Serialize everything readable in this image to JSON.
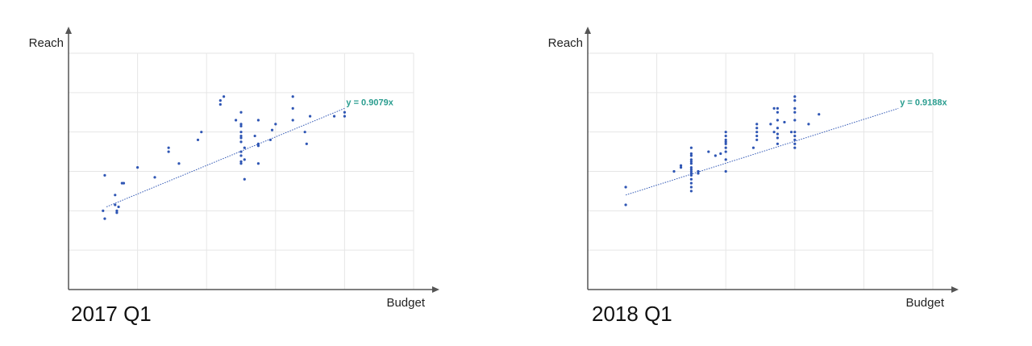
{
  "colors": {
    "point": "#2f56b4",
    "trend": "#2f56b4",
    "equation": "#2a9d8f",
    "grid": "#e6e6e6",
    "axis": "#555555"
  },
  "chart_data": [
    {
      "type": "scatter",
      "title": "2017 Q1",
      "xlabel": "Budget",
      "ylabel": "Reach",
      "xlim": [
        0,
        10
      ],
      "ylim": [
        0,
        6
      ],
      "grid": true,
      "trendline": {
        "label": "y = 0.9079x",
        "x": [
          1.1,
          8.0
        ],
        "y": [
          2.1,
          4.6
        ]
      },
      "points": [
        [
          1.0,
          2.0
        ],
        [
          1.05,
          1.8
        ],
        [
          1.05,
          2.9
        ],
        [
          1.4,
          2.0
        ],
        [
          1.35,
          2.15
        ],
        [
          1.4,
          1.95
        ],
        [
          1.45,
          2.1
        ],
        [
          1.35,
          2.4
        ],
        [
          1.55,
          2.7
        ],
        [
          1.6,
          2.7
        ],
        [
          2.0,
          3.1
        ],
        [
          2.5,
          2.85
        ],
        [
          2.9,
          3.5
        ],
        [
          2.9,
          3.6
        ],
        [
          3.2,
          3.2
        ],
        [
          3.75,
          3.8
        ],
        [
          3.85,
          4.0
        ],
        [
          4.4,
          4.7
        ],
        [
          4.4,
          4.8
        ],
        [
          4.5,
          4.9
        ],
        [
          4.85,
          4.3
        ],
        [
          5.0,
          4.5
        ],
        [
          5.0,
          4.2
        ],
        [
          5.0,
          4.15
        ],
        [
          5.0,
          4.0
        ],
        [
          5.0,
          3.9
        ],
        [
          5.0,
          3.85
        ],
        [
          5.0,
          3.75
        ],
        [
          5.0,
          3.5
        ],
        [
          5.0,
          3.4
        ],
        [
          5.0,
          3.25
        ],
        [
          5.0,
          3.2
        ],
        [
          5.1,
          3.6
        ],
        [
          5.1,
          3.3
        ],
        [
          5.1,
          2.8
        ],
        [
          5.5,
          4.3
        ],
        [
          5.4,
          3.9
        ],
        [
          5.5,
          3.7
        ],
        [
          5.5,
          3.65
        ],
        [
          5.5,
          3.2
        ],
        [
          6.0,
          4.2
        ],
        [
          6.5,
          4.3
        ],
        [
          6.5,
          4.6
        ],
        [
          6.5,
          4.9
        ],
        [
          7.0,
          4.4
        ],
        [
          6.85,
          4.0
        ],
        [
          6.9,
          3.7
        ],
        [
          7.7,
          4.4
        ],
        [
          8.0,
          4.5
        ],
        [
          8.0,
          4.4
        ],
        [
          5.9,
          4.05
        ],
        [
          5.85,
          3.8
        ]
      ]
    },
    {
      "type": "scatter",
      "title": "2018 Q1",
      "xlabel": "Budget",
      "ylabel": "Reach",
      "xlim": [
        0,
        10
      ],
      "ylim": [
        0,
        6
      ],
      "grid": true,
      "trendline": {
        "label": "y = 0.9188x",
        "x": [
          1.1,
          9.0
        ],
        "y": [
          2.4,
          4.6
        ]
      },
      "points": [
        [
          1.1,
          2.6
        ],
        [
          1.1,
          2.15
        ],
        [
          2.7,
          3.15
        ],
        [
          2.7,
          3.1
        ],
        [
          2.5,
          3.0
        ],
        [
          3.0,
          3.6
        ],
        [
          3.0,
          3.45
        ],
        [
          3.0,
          3.4
        ],
        [
          3.0,
          3.3
        ],
        [
          3.0,
          3.2
        ],
        [
          3.0,
          3.1
        ],
        [
          3.0,
          3.05
        ],
        [
          3.0,
          3.0
        ],
        [
          3.0,
          2.95
        ],
        [
          3.0,
          2.9
        ],
        [
          3.0,
          2.8
        ],
        [
          3.0,
          2.7
        ],
        [
          3.0,
          2.6
        ],
        [
          3.0,
          2.5
        ],
        [
          3.0,
          3.25
        ],
        [
          3.2,
          3.0
        ],
        [
          3.2,
          2.95
        ],
        [
          4.0,
          4.0
        ],
        [
          4.0,
          3.9
        ],
        [
          4.0,
          3.8
        ],
        [
          4.0,
          3.75
        ],
        [
          4.0,
          3.7
        ],
        [
          4.0,
          3.6
        ],
        [
          4.0,
          3.5
        ],
        [
          4.0,
          3.3
        ],
        [
          4.0,
          3.0
        ],
        [
          3.7,
          3.4
        ],
        [
          3.5,
          3.5
        ],
        [
          3.85,
          3.45
        ],
        [
          4.9,
          4.2
        ],
        [
          4.9,
          4.1
        ],
        [
          4.9,
          4.0
        ],
        [
          4.9,
          3.9
        ],
        [
          4.9,
          3.8
        ],
        [
          4.8,
          3.6
        ],
        [
          5.3,
          4.2
        ],
        [
          5.4,
          4.0
        ],
        [
          5.5,
          4.6
        ],
        [
          5.5,
          4.5
        ],
        [
          5.5,
          4.3
        ],
        [
          5.5,
          4.1
        ],
        [
          5.5,
          3.95
        ],
        [
          5.5,
          3.85
        ],
        [
          5.5,
          3.7
        ],
        [
          6.0,
          4.0
        ],
        [
          6.0,
          4.3
        ],
        [
          6.0,
          4.5
        ],
        [
          6.0,
          4.6
        ],
        [
          6.0,
          4.8
        ],
        [
          6.0,
          4.9
        ],
        [
          6.0,
          3.6
        ],
        [
          6.0,
          3.7
        ],
        [
          6.0,
          3.8
        ],
        [
          6.0,
          3.9
        ],
        [
          5.9,
          4.0
        ],
        [
          6.4,
          4.2
        ],
        [
          6.7,
          4.45
        ],
        [
          5.4,
          4.6
        ],
        [
          5.7,
          4.25
        ]
      ]
    }
  ]
}
